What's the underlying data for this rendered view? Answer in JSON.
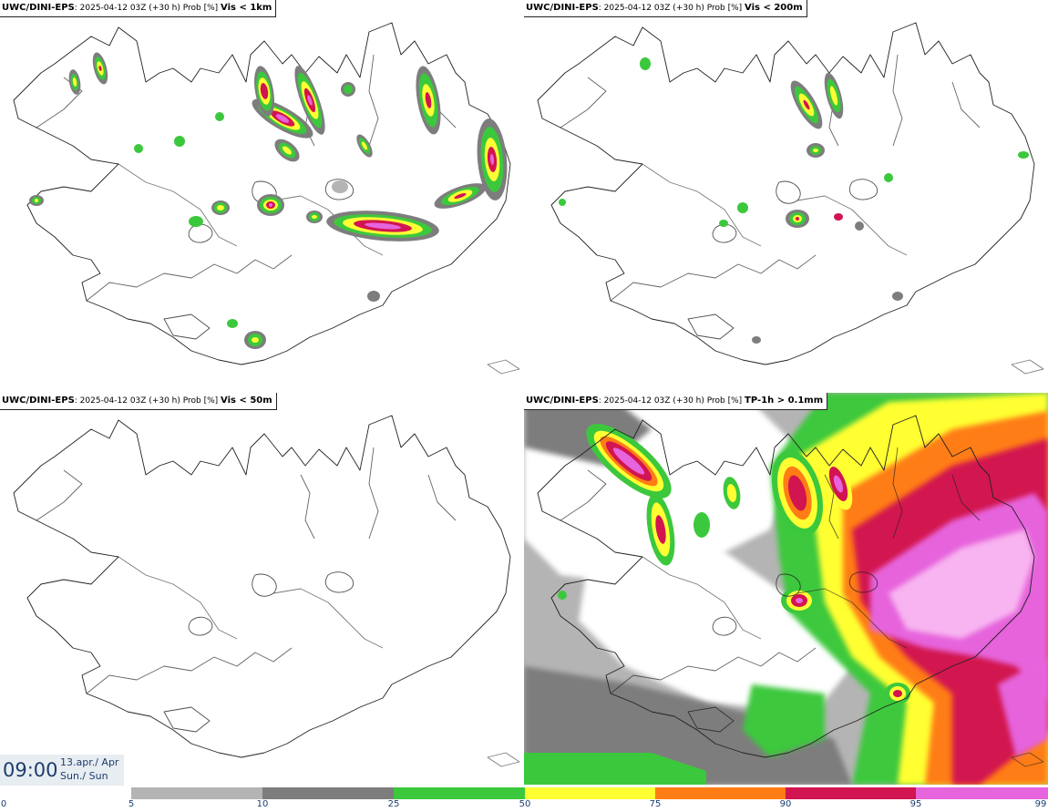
{
  "panels": [
    {
      "model": "UWC/DINI-EPS",
      "run": ": 2025-04-12 03Z (+30 h) Prob [%] ",
      "threshold": "Vis < 1km"
    },
    {
      "model": "UWC/DINI-EPS",
      "run": ": 2025-04-12 03Z (+30 h) Prob [%] ",
      "threshold": "Vis < 200m"
    },
    {
      "model": "UWC/DINI-EPS",
      "run": ": 2025-04-12 03Z (+30 h) Prob [%] ",
      "threshold": "Vis < 50m"
    },
    {
      "model": "UWC/DINI-EPS",
      "run": ": 2025-04-12 03Z (+30 h) Prob [%] ",
      "threshold": "TP-1h > 0.1mm"
    }
  ],
  "valid_time": {
    "time": "09:00",
    "date": "13.apr./ Apr",
    "day": "Sun./ Sun"
  },
  "legend": {
    "ticks": [
      "0",
      "5",
      "10",
      "25",
      "50",
      "75",
      "90",
      "95",
      "99"
    ],
    "colors": [
      "#ffffff",
      "#b4b4b4",
      "#7d7d7d",
      "#3cc83c",
      "#ffff33",
      "#ff7d14",
      "#d21450",
      "#e664dc"
    ]
  }
}
